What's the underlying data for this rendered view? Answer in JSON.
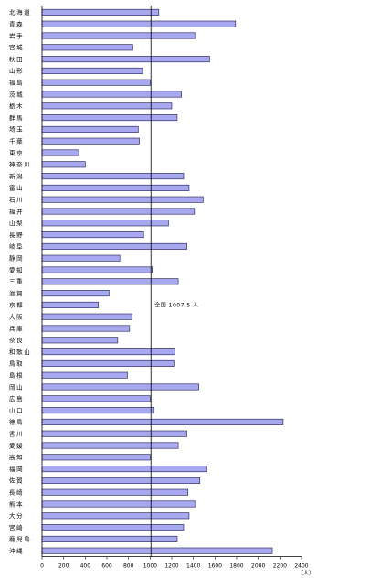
{
  "chart_data": {
    "type": "bar",
    "orientation": "horizontal",
    "title": "",
    "xlabel": "",
    "ylabel": "",
    "unit": "（人）",
    "xlim": [
      0,
      2400
    ],
    "xticks": [
      0,
      200,
      400,
      600,
      800,
      1000,
      1200,
      1400,
      1600,
      1800,
      2000,
      2200,
      2400
    ],
    "grid": false,
    "categories": [
      "北海道",
      "青森",
      "岩手",
      "宮城",
      "秋田",
      "山形",
      "福島",
      "茨城",
      "栃木",
      "群馬",
      "埼玉",
      "千葉",
      "東京",
      "神奈川",
      "新潟",
      "富山",
      "石川",
      "福井",
      "山梨",
      "長野",
      "岐阜",
      "静岡",
      "愛知",
      "三重",
      "滋賀",
      "京都",
      "大阪",
      "兵庫",
      "奈良",
      "和歌山",
      "鳥取",
      "島根",
      "岡山",
      "広島",
      "山口",
      "徳島",
      "香川",
      "愛媛",
      "高知",
      "福岡",
      "佐賀",
      "長崎",
      "熊本",
      "大分",
      "宮崎",
      "鹿児島",
      "沖縄"
    ],
    "values": [
      1080,
      1790,
      1420,
      840,
      1550,
      930,
      1000,
      1290,
      1200,
      1250,
      890,
      900,
      340,
      400,
      1310,
      1360,
      1490,
      1410,
      1170,
      940,
      1340,
      720,
      1020,
      1260,
      620,
      520,
      830,
      810,
      700,
      1230,
      1220,
      790,
      1450,
      1000,
      1030,
      2230,
      1340,
      1260,
      1000,
      1520,
      1460,
      1350,
      1420,
      1360,
      1310,
      1250,
      2130
    ],
    "reference_value": 1007.5,
    "annotation": "全国 1007.5 人"
  }
}
